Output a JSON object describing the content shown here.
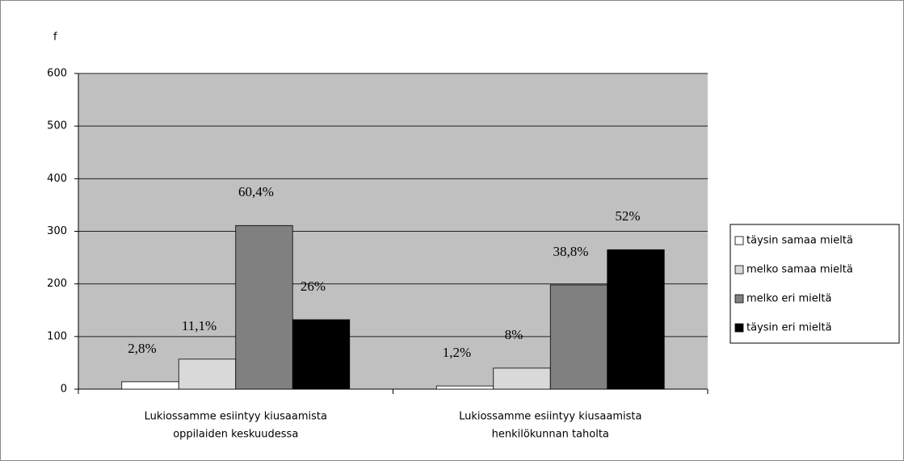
{
  "chart_data": {
    "type": "bar",
    "ylabel": "f",
    "categories": [
      [
        "Lukiossamme esiintyy kiusaamista",
        "oppilaiden keskuudessa"
      ],
      [
        "Lukiossamme esiintyy kiusaamista",
        "henkilökunnan taholta"
      ]
    ],
    "series": [
      {
        "name": "täysin samaa mieltä",
        "color": "#ffffff",
        "values": [
          14,
          6
        ],
        "labels": [
          "2,8%",
          "1,2%"
        ]
      },
      {
        "name": "melko samaa mieltä",
        "color": "#d9d9d9",
        "values": [
          57,
          40
        ],
        "labels": [
          "11,1%",
          "8%"
        ]
      },
      {
        "name": "melko eri mieltä",
        "color": "#808080",
        "values": [
          311,
          198
        ],
        "labels": [
          "60,4%",
          "38,8%"
        ]
      },
      {
        "name": "täysin eri mieltä",
        "color": "#000000",
        "values": [
          132,
          265
        ],
        "labels": [
          "26%",
          "52%"
        ]
      }
    ],
    "ylim": [
      0,
      600
    ],
    "yticks": [
      0,
      100,
      200,
      300,
      400,
      500,
      600
    ],
    "grid": true,
    "legend": "right"
  }
}
